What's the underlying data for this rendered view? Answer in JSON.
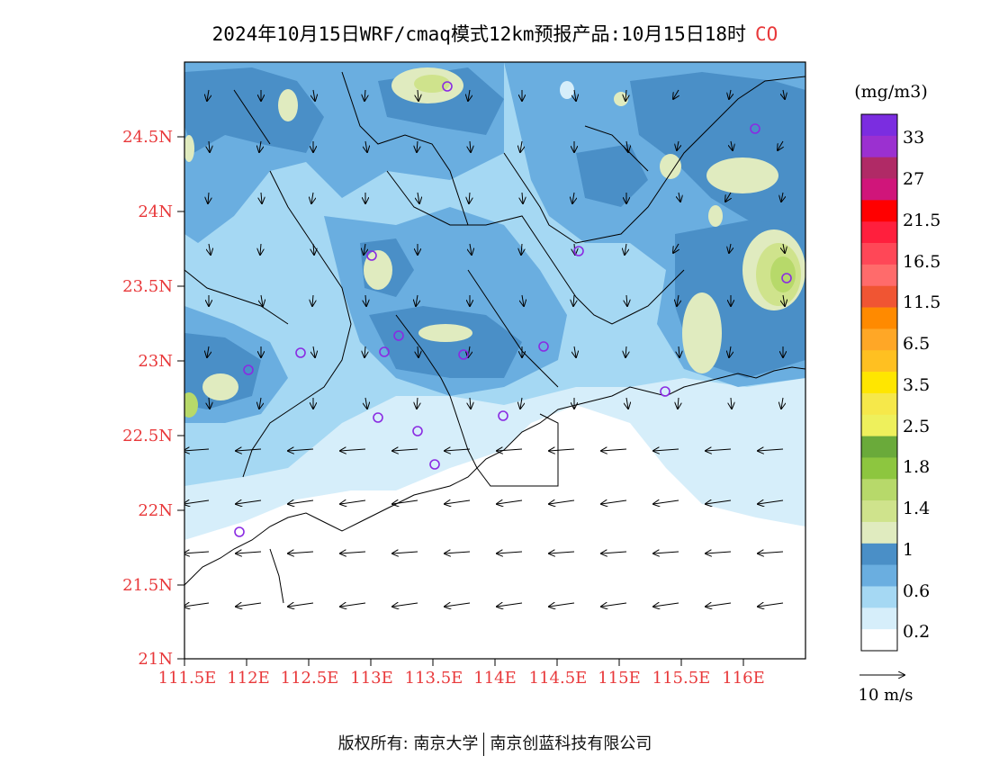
{
  "title": {
    "text": "2024年10月15日WRF/cmaq模式12km预报产品:10月15日18时",
    "species": "CO"
  },
  "axes": {
    "lat_labels": [
      "21N",
      "21.5N",
      "22N",
      "22.5N",
      "23N",
      "23.5N",
      "24N",
      "24.5N"
    ],
    "lon_labels": [
      "111.5E",
      "112E",
      "112.5E",
      "113E",
      "113.5E",
      "114E",
      "114.5E",
      "115E",
      "115.5E",
      "116E"
    ]
  },
  "legend": {
    "unit": "(mg/m3)",
    "labels": [
      "33",
      "27",
      "21.5",
      "16.5",
      "11.5",
      "6.5",
      "3.5",
      "2.5",
      "1.8",
      "1.4",
      "1",
      "0.6",
      "0.2"
    ],
    "colors": [
      "#7b2de0",
      "#9b30d0",
      "#b02a66",
      "#d0157a",
      "#ff0000",
      "#ff1f3d",
      "#ff4757",
      "#ff6b6b",
      "#f05533",
      "#ff8a00",
      "#ffa726",
      "#ffc021",
      "#ffe600",
      "#f6e84a",
      "#eef05c",
      "#6aaa3a",
      "#8dc63f",
      "#b7d96a",
      "#cfe38c",
      "#e0ebbf",
      "#4a8fc7",
      "#6aaee0",
      "#a5d8f3",
      "#d6eefa",
      "#ffffff"
    ]
  },
  "wind_scale": {
    "label": "10 m/s"
  },
  "footer": {
    "left": "版权所有: 南京大学",
    "right": "南京创蓝科技有限公司"
  }
}
